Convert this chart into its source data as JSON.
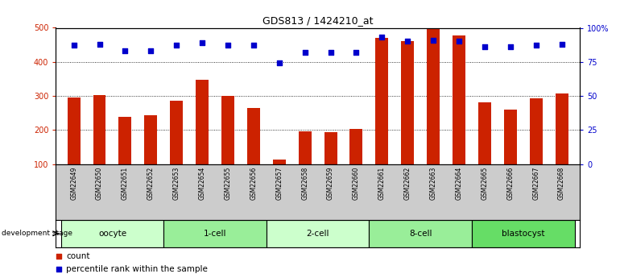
{
  "title": "GDS813 / 1424210_at",
  "samples": [
    "GSM22649",
    "GSM22650",
    "GSM22651",
    "GSM22652",
    "GSM22653",
    "GSM22654",
    "GSM22655",
    "GSM22656",
    "GSM22657",
    "GSM22658",
    "GSM22659",
    "GSM22660",
    "GSM22661",
    "GSM22662",
    "GSM22663",
    "GSM22664",
    "GSM22665",
    "GSM22666",
    "GSM22667",
    "GSM22668"
  ],
  "counts": [
    295,
    302,
    238,
    244,
    285,
    348,
    300,
    265,
    112,
    197,
    194,
    203,
    470,
    460,
    497,
    477,
    281,
    260,
    293,
    308
  ],
  "percentiles": [
    87,
    88,
    83,
    83,
    87,
    89,
    87,
    87,
    74,
    82,
    82,
    82,
    93,
    90,
    91,
    90,
    86,
    86,
    87,
    88
  ],
  "stages": [
    {
      "label": "oocyte",
      "start": 0,
      "end": 4,
      "color": "#ccffcc"
    },
    {
      "label": "1-cell",
      "start": 4,
      "end": 8,
      "color": "#99ee99"
    },
    {
      "label": "2-cell",
      "start": 8,
      "end": 12,
      "color": "#ccffcc"
    },
    {
      "label": "8-cell",
      "start": 12,
      "end": 16,
      "color": "#99ee99"
    },
    {
      "label": "blastocyst",
      "start": 16,
      "end": 20,
      "color": "#66dd66"
    }
  ],
  "bar_color": "#cc2200",
  "dot_color": "#0000cc",
  "ylim_left": [
    100,
    500
  ],
  "ylim_right": [
    0,
    100
  ],
  "yticks_left": [
    100,
    200,
    300,
    400,
    500
  ],
  "yticks_right": [
    0,
    25,
    50,
    75,
    100
  ],
  "ytick_labels_right": [
    "0",
    "25",
    "50",
    "75",
    "100%"
  ],
  "grid_values": [
    200,
    300,
    400
  ],
  "bg_color": "#ffffff",
  "tick_area_color": "#cccccc",
  "legend_count_label": "count",
  "legend_pct_label": "percentile rank within the sample"
}
